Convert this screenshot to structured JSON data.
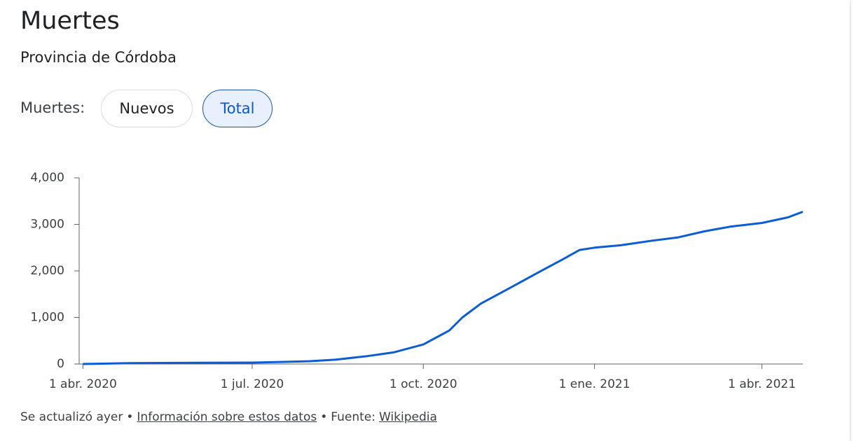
{
  "header": {
    "title": "Muertes",
    "subtitle": "Provincia de Córdoba"
  },
  "toggle": {
    "label": "Muertes:",
    "options": [
      "Nuevos",
      "Total"
    ],
    "selected": "Total"
  },
  "chart_data": {
    "type": "line",
    "x": [
      "2020-04-01",
      "2020-04-26",
      "2020-06-01",
      "2020-07-01",
      "2020-07-18",
      "2020-08-01",
      "2020-08-15",
      "2020-09-01",
      "2020-09-15",
      "2020-10-01",
      "2020-10-15",
      "2020-10-22",
      "2020-11-01",
      "2020-11-15",
      "2020-12-01",
      "2020-12-15",
      "2020-12-24",
      "2021-01-01",
      "2021-01-15",
      "2021-02-01",
      "2021-02-15",
      "2021-03-01",
      "2021-03-15",
      "2021-04-01",
      "2021-04-15",
      "2021-04-23"
    ],
    "series": [
      {
        "name": "Total",
        "color": "#0b5cd5",
        "values": [
          0,
          20,
          25,
          30,
          45,
          60,
          95,
          170,
          250,
          420,
          720,
          1000,
          1300,
          1600,
          1950,
          2250,
          2450,
          2500,
          2550,
          2650,
          2720,
          2850,
          2950,
          3030,
          3150,
          3270
        ]
      }
    ],
    "xlim": [
      "2020-03-30",
      "2021-04-23"
    ],
    "xticks": [
      {
        "value": "2020-04-01",
        "label": "1 abr. 2020"
      },
      {
        "value": "2020-07-01",
        "label": "1 jul. 2020"
      },
      {
        "value": "2020-10-01",
        "label": "1 oct. 2020"
      },
      {
        "value": "2021-01-01",
        "label": "1 ene. 2021"
      },
      {
        "value": "2021-04-01",
        "label": "1 abr. 2021"
      }
    ],
    "ylim": [
      0,
      4000
    ],
    "yticks": [
      0,
      {
        "value": 1000,
        "label": "1,000"
      },
      {
        "value": 2000,
        "label": "2,000"
      },
      {
        "value": 3000,
        "label": "3,000"
      },
      {
        "value": 4000,
        "label": "4,000"
      }
    ]
  },
  "footer": [
    "Se actualizó ayer",
    "•",
    "Información sobre estos datos",
    "•",
    "Fuente:",
    "Wikipedia"
  ]
}
